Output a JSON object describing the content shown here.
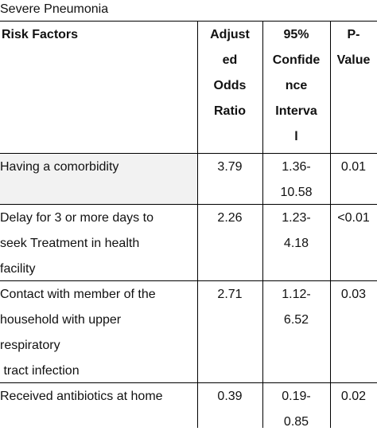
{
  "caption": "Severe Pneumonia",
  "columns": {
    "risk_factors": "Risk Factors",
    "adjusted_odds_ratio": [
      "Adjust",
      "ed",
      "Odds",
      "Ratio"
    ],
    "ci": [
      "95%",
      "Confide",
      "nce",
      "Interva",
      "l"
    ],
    "p_value": [
      "P-",
      "Value"
    ]
  },
  "rows": [
    {
      "factor": [
        "Having a comorbidity"
      ],
      "aor": "3.79",
      "ci": [
        "1.36-",
        "10.58"
      ],
      "p": "0.01"
    },
    {
      "factor": [
        "Delay for 3 or more days to",
        "seek Treatment in health",
        "facility"
      ],
      "aor": "2.26",
      "ci": [
        "1.23-",
        "4.18"
      ],
      "p": "<0.01"
    },
    {
      "factor": [
        "Contact with member of the",
        "household with upper",
        "respiratory",
        " tract infection"
      ],
      "aor": "2.71",
      "ci": [
        "1.12-",
        "6.52"
      ],
      "p": "0.03"
    },
    {
      "factor": [
        "Received antibiotics at home"
      ],
      "aor": "0.39",
      "ci": [
        "0.19-",
        "0.85"
      ],
      "p": "0.02"
    }
  ]
}
